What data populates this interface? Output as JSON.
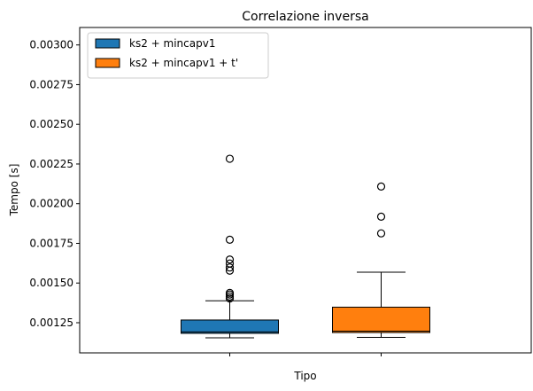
{
  "chart_data": {
    "type": "box",
    "title": "Correlazione inversa",
    "xlabel": "Tipo",
    "ylabel": "Tempo [s]",
    "ylim": [
      0.00106,
      0.00311
    ],
    "yticks": [
      0.00125,
      0.0015,
      0.00175,
      0.002,
      0.00225,
      0.0025,
      0.00275,
      0.003
    ],
    "ytick_labels": [
      "0.00125",
      "0.00150",
      "0.00175",
      "0.00200",
      "0.00225",
      "0.00250",
      "0.00275",
      "0.00300"
    ],
    "grid": false,
    "legend_position": "top-left",
    "series": [
      {
        "name": "ks2 + mincapv1",
        "color": "#1f77b4",
        "whisker_low": 0.001155,
        "q1": 0.001183,
        "median": 0.001192,
        "q3": 0.001267,
        "whisker_high": 0.001388,
        "outliers": [
          0.001403,
          0.001415,
          0.001428,
          0.001438,
          0.001578,
          0.001598,
          0.001623,
          0.001648,
          0.001773,
          0.002283
        ]
      },
      {
        "name": "ks2 + mincapv1 + t'",
        "color": "#ff7f0e",
        "whisker_low": 0.001158,
        "q1": 0.001188,
        "median": 0.001197,
        "q3": 0.001348,
        "whisker_high": 0.001568,
        "outliers": [
          0.001813,
          0.001918,
          0.002108
        ]
      }
    ]
  }
}
